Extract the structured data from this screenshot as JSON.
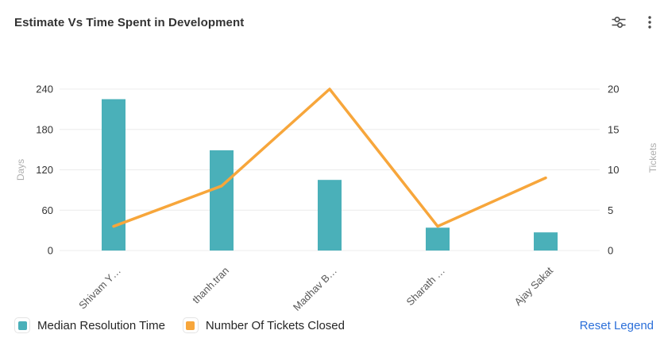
{
  "header": {
    "title": "Estimate Vs Time Spent in Development"
  },
  "chart_data": {
    "type": "combo-bar-line",
    "title": "Estimate Vs Time Spent in Development",
    "categories": [
      "Shivam Y…",
      "thanh.tran",
      "Madhav B…",
      "Sharath …",
      "Ajay Sakat"
    ],
    "series": [
      {
        "name": "Median Resolution Time",
        "type": "bar",
        "axis": "left",
        "color": "#4AB0B9",
        "values": [
          225,
          149,
          105,
          34,
          27
        ]
      },
      {
        "name": "Number Of Tickets Closed",
        "type": "line",
        "axis": "right",
        "color": "#F7A63B",
        "values": [
          3,
          8,
          20,
          3,
          9
        ]
      }
    ],
    "left_axis": {
      "label": "Days",
      "range": [
        0,
        240
      ],
      "ticks": [
        0,
        60,
        120,
        180,
        240
      ]
    },
    "right_axis": {
      "label": "Tickets",
      "range": [
        0,
        20
      ],
      "ticks": [
        0,
        5,
        10,
        15,
        20
      ]
    },
    "grid": true,
    "legend_position": "bottom"
  },
  "legend": {
    "items": [
      {
        "label": "Median Resolution Time",
        "color": "#4AB0B9"
      },
      {
        "label": "Number Of Tickets Closed",
        "color": "#F7A63B"
      }
    ],
    "reset_label": "Reset Legend"
  },
  "colors": {
    "bar": "#4AB0B9",
    "line": "#F7A63B",
    "link_blue": "#2B6FD9",
    "grid_line": "#ECECEC",
    "tick_text": "#333333",
    "axis_title_text": "#AEAEAE",
    "category_text": "#595959",
    "icon": "#4A4A4A"
  }
}
